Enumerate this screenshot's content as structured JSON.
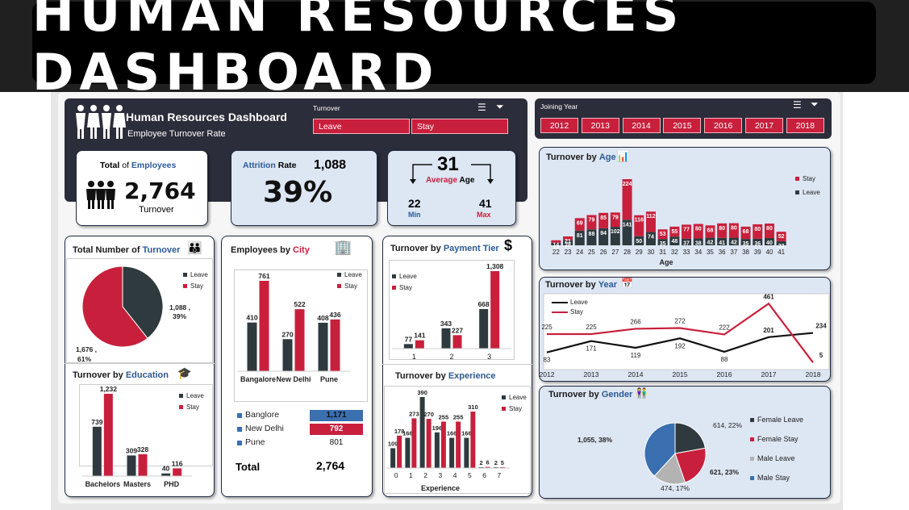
{
  "banner": {
    "title": "HUMAN RESOURCES DASHBOARD"
  },
  "header": {
    "title": "Human Resources Dashboard",
    "subtitle": "Employee Turnover Rate"
  },
  "turnover_slicer": {
    "label": "Turnover",
    "options": [
      "Leave",
      "Stay"
    ]
  },
  "year_slicer": {
    "label": "Joining Year",
    "options": [
      "2012",
      "2013",
      "2014",
      "2015",
      "2016",
      "2017",
      "2018"
    ]
  },
  "kpi": {
    "total_label_a": "Total",
    "total_label_of": "of",
    "total_label_b": "Employees",
    "total_value": "2,764",
    "total_sub": "Turnover",
    "attrition_label_a": "Attrition",
    "attrition_label_b": "Rate",
    "attrition_count": "1,088",
    "attrition_value": "39%",
    "age_value": "31",
    "age_label_a": "Average",
    "age_label_b": "Age",
    "age_min": "22",
    "age_min_label": "Min",
    "age_max": "41",
    "age_max_label": "Max"
  },
  "colors": {
    "leave": "#2f3a3e",
    "stay": "#c8203c",
    "male_leave": "#b3b3b3",
    "male_stay": "#3a6fb0",
    "navy": "#2b5a97"
  },
  "chart_data": [
    {
      "id": "turnover_total",
      "type": "pie",
      "title": "Total Number of Turnover",
      "title_a": "Total Number of",
      "title_b": "Turnover",
      "slices": [
        {
          "name": "Leave",
          "value": 1088,
          "label_a": "1,088 ,",
          "label_b": "39%"
        },
        {
          "name": "Stay",
          "value": 1676,
          "label_a": "1,676 ,",
          "label_b": "61%"
        }
      ],
      "legend": [
        "Leave",
        "Stay"
      ]
    },
    {
      "id": "education",
      "type": "bar",
      "title": "Turnover by Education",
      "title_a": "Turnover by",
      "title_b": "Education",
      "categories": [
        "Bachelors",
        "Masters",
        "PHD"
      ],
      "series": [
        {
          "name": "Leave",
          "values": [
            739,
            309,
            40
          ]
        },
        {
          "name": "Stay",
          "values": [
            1232,
            328,
            116
          ]
        }
      ]
    },
    {
      "id": "city",
      "type": "bar",
      "title": "Employees by City",
      "title_a": "Employees by",
      "title_b": "City",
      "categories": [
        "Bangalore",
        "New Delhi",
        "Pune"
      ],
      "series": [
        {
          "name": "Leave",
          "values": [
            410,
            270,
            408
          ]
        },
        {
          "name": "Stay",
          "values": [
            761,
            522,
            436
          ]
        }
      ],
      "table": {
        "rows": [
          {
            "name": "Banglore",
            "value": "1,171"
          },
          {
            "name": "New Delhi",
            "value": "792"
          },
          {
            "name": "Pune",
            "value": "801"
          }
        ],
        "total_label": "Total",
        "total_value": "2,764"
      }
    },
    {
      "id": "payment",
      "type": "bar",
      "title": "Turnover by Payment Tier",
      "title_a": "Turnover by",
      "title_b": "Payment Tier",
      "categories": [
        "1",
        "2",
        "3"
      ],
      "series": [
        {
          "name": "Leave",
          "values": [
            77,
            343,
            668
          ]
        },
        {
          "name": "Stay",
          "values": [
            141,
            227,
            1308
          ]
        }
      ]
    },
    {
      "id": "experience",
      "type": "bar",
      "title": "Turnover by Experience",
      "title_a": "Turnover by",
      "title_b": "Experience",
      "xlabel": "Experience",
      "categories": [
        "0",
        "1",
        "2",
        "3",
        "4",
        "5",
        "6",
        "7"
      ],
      "series": [
        {
          "name": "Leave",
          "values": [
            109,
            166,
            390,
            196,
            166,
            166,
            2,
            2
          ]
        },
        {
          "name": "Stay",
          "values": [
            178,
            273,
            270,
            255,
            255,
            310,
            6,
            5
          ]
        }
      ]
    },
    {
      "id": "age",
      "type": "bar",
      "title": "Turnover by Age",
      "title_a": "Turnover by",
      "title_b": "Age",
      "xlabel": "Age",
      "categories": [
        "22",
        "23",
        "24",
        "25",
        "26",
        "27",
        "28",
        "29",
        "30",
        "31",
        "32",
        "33",
        "34",
        "35",
        "36",
        "37",
        "38",
        "39",
        "40",
        "41"
      ],
      "series": [
        {
          "name": "Leave",
          "values": [
            14,
            28,
            81,
            88,
            94,
            102,
            141,
            50,
            74,
            35,
            48,
            37,
            38,
            42,
            41,
            42,
            35,
            36,
            40,
            23
          ]
        },
        {
          "name": "Stay",
          "values": [
            14,
            21,
            69,
            79,
            85,
            79,
            224,
            116,
            112,
            53,
            55,
            77,
            80,
            68,
            80,
            80,
            68,
            80,
            80,
            52
          ]
        }
      ]
    },
    {
      "id": "year",
      "type": "line",
      "title": "Turnover by Year",
      "title_a": "Turnover by",
      "title_b": "Year",
      "x": [
        "2012",
        "2013",
        "2014",
        "2015",
        "2016",
        "2017",
        "2018"
      ],
      "series": [
        {
          "name": "Leave",
          "values": [
            83,
            171,
            119,
            192,
            88,
            201,
            234
          ]
        },
        {
          "name": "Stay",
          "values": [
            225,
            225,
            266,
            272,
            222,
            461,
            5
          ]
        }
      ]
    },
    {
      "id": "gender",
      "type": "pie",
      "title": "Turnover by Gender",
      "title_a": "Turnover by",
      "title_b": "Gender",
      "slices": [
        {
          "name": "Female Leave",
          "value": 614,
          "label": "614, 22%"
        },
        {
          "name": "Female Stay",
          "value": 621,
          "label": "621, 23%"
        },
        {
          "name": "Male Leave",
          "value": 474,
          "label": "474, 17%"
        },
        {
          "name": "Male Stay",
          "value": 1055,
          "label": "1,055, 38%"
        }
      ],
      "legend": [
        "Female Leave",
        "Female Stay",
        "Male Leave",
        "Male Stay"
      ]
    }
  ]
}
